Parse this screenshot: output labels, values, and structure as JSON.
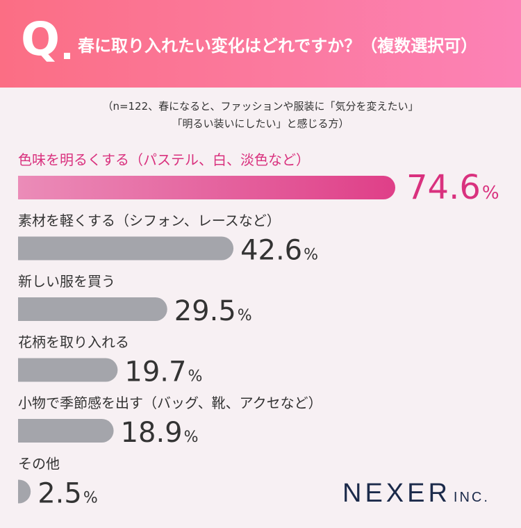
{
  "header": {
    "q_letter": "Q",
    "question": "春に取り入れたい変化はどれですか？（複数選択可）"
  },
  "note": {
    "line1": "（n=122、春になると、ファッションや服装に「気分を変えたい」",
    "line2": "「明るい装いにしたい」と感じる方）"
  },
  "chart_data": {
    "type": "bar",
    "orientation": "horizontal",
    "unit": "%",
    "categories": [
      "色味を明るくする（パステル、白、淡色など）",
      "素材を軽くする（シフォン、レースなど）",
      "新しい服を買う",
      "花柄を取り入れる",
      "小物で季節感を出す（バッグ、靴、アクセなど）",
      "その他"
    ],
    "values": [
      74.6,
      42.6,
      29.5,
      19.7,
      18.9,
      2.5
    ],
    "value_labels": [
      "74.6",
      "42.6",
      "29.5",
      "19.7",
      "18.9",
      "2.5"
    ],
    "highlight_index": 0
  },
  "colors": {
    "highlight": "#d9317e",
    "highlight_bar_start": "#eb8cb8",
    "highlight_bar_end": "#df3f88",
    "bar": "#a4a5ab",
    "label": "#333333"
  },
  "logo": {
    "main": "NEXER",
    "sub": "INC."
  }
}
